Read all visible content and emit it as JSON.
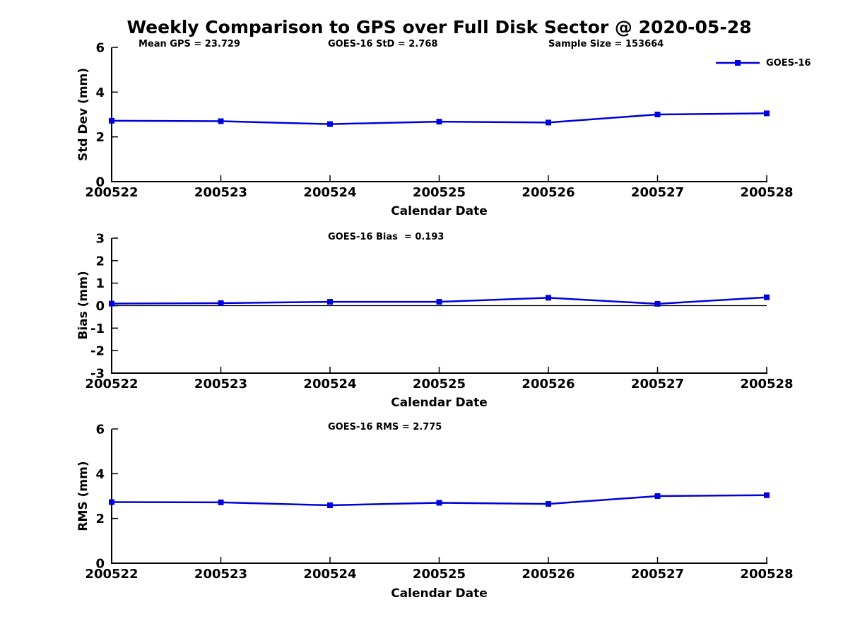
{
  "title": "Weekly Comparison to GPS over Full Disk Sector @ 2020-05-28",
  "legend": {
    "label": "GOES-16"
  },
  "colors": {
    "series": "#0000dd",
    "axis": "#000000"
  },
  "chart_data": [
    {
      "type": "line",
      "name": "std-dev-panel",
      "title_annotations": [
        "Mean GPS = 23.729",
        "GOES-16 StD = 2.768",
        "Sample Size = 153664"
      ],
      "xlabel": "Calendar Date",
      "ylabel": "Std Dev (mm)",
      "categories": [
        "200522",
        "200523",
        "200524",
        "200525",
        "200526",
        "200527",
        "200528"
      ],
      "series": [
        {
          "name": "GOES-16",
          "values": [
            2.72,
            2.7,
            2.57,
            2.68,
            2.64,
            3.0,
            3.05
          ]
        }
      ],
      "ylim": [
        0,
        6
      ],
      "yticks": [
        0,
        2,
        4,
        6
      ],
      "legend_entries": [
        "GOES-16"
      ],
      "legend_position": "upper right",
      "grid": false
    },
    {
      "type": "line",
      "name": "bias-panel",
      "title_annotations": [
        "GOES-16 Bias  = 0.193"
      ],
      "xlabel": "Calendar Date",
      "ylabel": "Bias (mm)",
      "categories": [
        "200522",
        "200523",
        "200524",
        "200525",
        "200526",
        "200527",
        "200528"
      ],
      "series": [
        {
          "name": "GOES-16",
          "values": [
            0.09,
            0.11,
            0.17,
            0.17,
            0.35,
            0.08,
            0.37
          ]
        }
      ],
      "ylim": [
        -3,
        3
      ],
      "yticks": [
        -3,
        -2,
        -1,
        0,
        1,
        2,
        3
      ],
      "zero_line": true,
      "grid": false
    },
    {
      "type": "line",
      "name": "rms-panel",
      "title_annotations": [
        "GOES-16 RMS = 2.775"
      ],
      "xlabel": "Calendar Date",
      "ylabel": "RMS (mm)",
      "categories": [
        "200522",
        "200523",
        "200524",
        "200525",
        "200526",
        "200527",
        "200528"
      ],
      "series": [
        {
          "name": "GOES-16",
          "values": [
            2.73,
            2.72,
            2.59,
            2.7,
            2.65,
            3.0,
            3.04
          ]
        }
      ],
      "ylim": [
        0,
        6
      ],
      "yticks": [
        0,
        2,
        4,
        6
      ],
      "grid": false
    }
  ]
}
